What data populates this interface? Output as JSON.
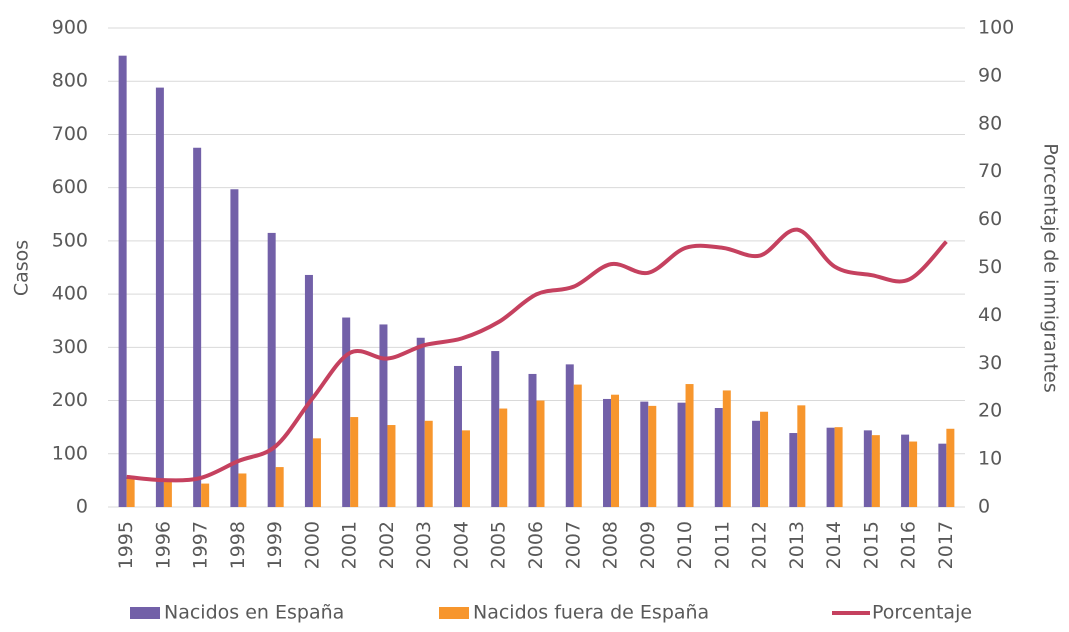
{
  "chart_data": {
    "type": "bar_line",
    "categories": [
      "1995",
      "1996",
      "1997",
      "1998",
      "1999",
      "2000",
      "2001",
      "2002",
      "2003",
      "2004",
      "2005",
      "2006",
      "2007",
      "2008",
      "2009",
      "2010",
      "2011",
      "2012",
      "2013",
      "2014",
      "2015",
      "2016",
      "2017"
    ],
    "series": [
      {
        "name": "Nacidos en España",
        "color": "#7260a8",
        "type": "bar",
        "values": [
          848,
          788,
          675,
          597,
          515,
          436,
          356,
          343,
          318,
          265,
          293,
          250,
          268,
          203,
          198,
          196,
          186,
          162,
          139,
          149,
          144,
          136,
          119
        ]
      },
      {
        "name": "Nacidos fuera de España",
        "color": "#f7962d",
        "type": "bar",
        "values": [
          57,
          47,
          44,
          63,
          75,
          129,
          169,
          154,
          162,
          144,
          185,
          200,
          230,
          211,
          190,
          231,
          219,
          179,
          191,
          150,
          135,
          123,
          147
        ]
      },
      {
        "name": "Porcentaje",
        "color": "#c5415f",
        "type": "line",
        "axis": "y2",
        "values": [
          6.3,
          5.6,
          6.1,
          9.6,
          12.7,
          22.8,
          32.2,
          31.0,
          33.8,
          35.2,
          38.7,
          44.4,
          46.0,
          50.7,
          48.9,
          54.1,
          54.1,
          52.5,
          57.9,
          50.2,
          48.4,
          47.5,
          55.4
        ]
      }
    ],
    "y_label": "Casos",
    "y2_label": "Porcentaje de inmigrantes",
    "ylim": [
      0,
      900
    ],
    "yticks": [
      0,
      100,
      200,
      300,
      400,
      500,
      600,
      700,
      800,
      900
    ],
    "y2lim": [
      0,
      100
    ],
    "y2ticks": [
      0,
      10,
      20,
      30,
      40,
      50,
      60,
      70,
      80,
      90,
      100
    ],
    "grid": true,
    "legend": "bottom"
  }
}
